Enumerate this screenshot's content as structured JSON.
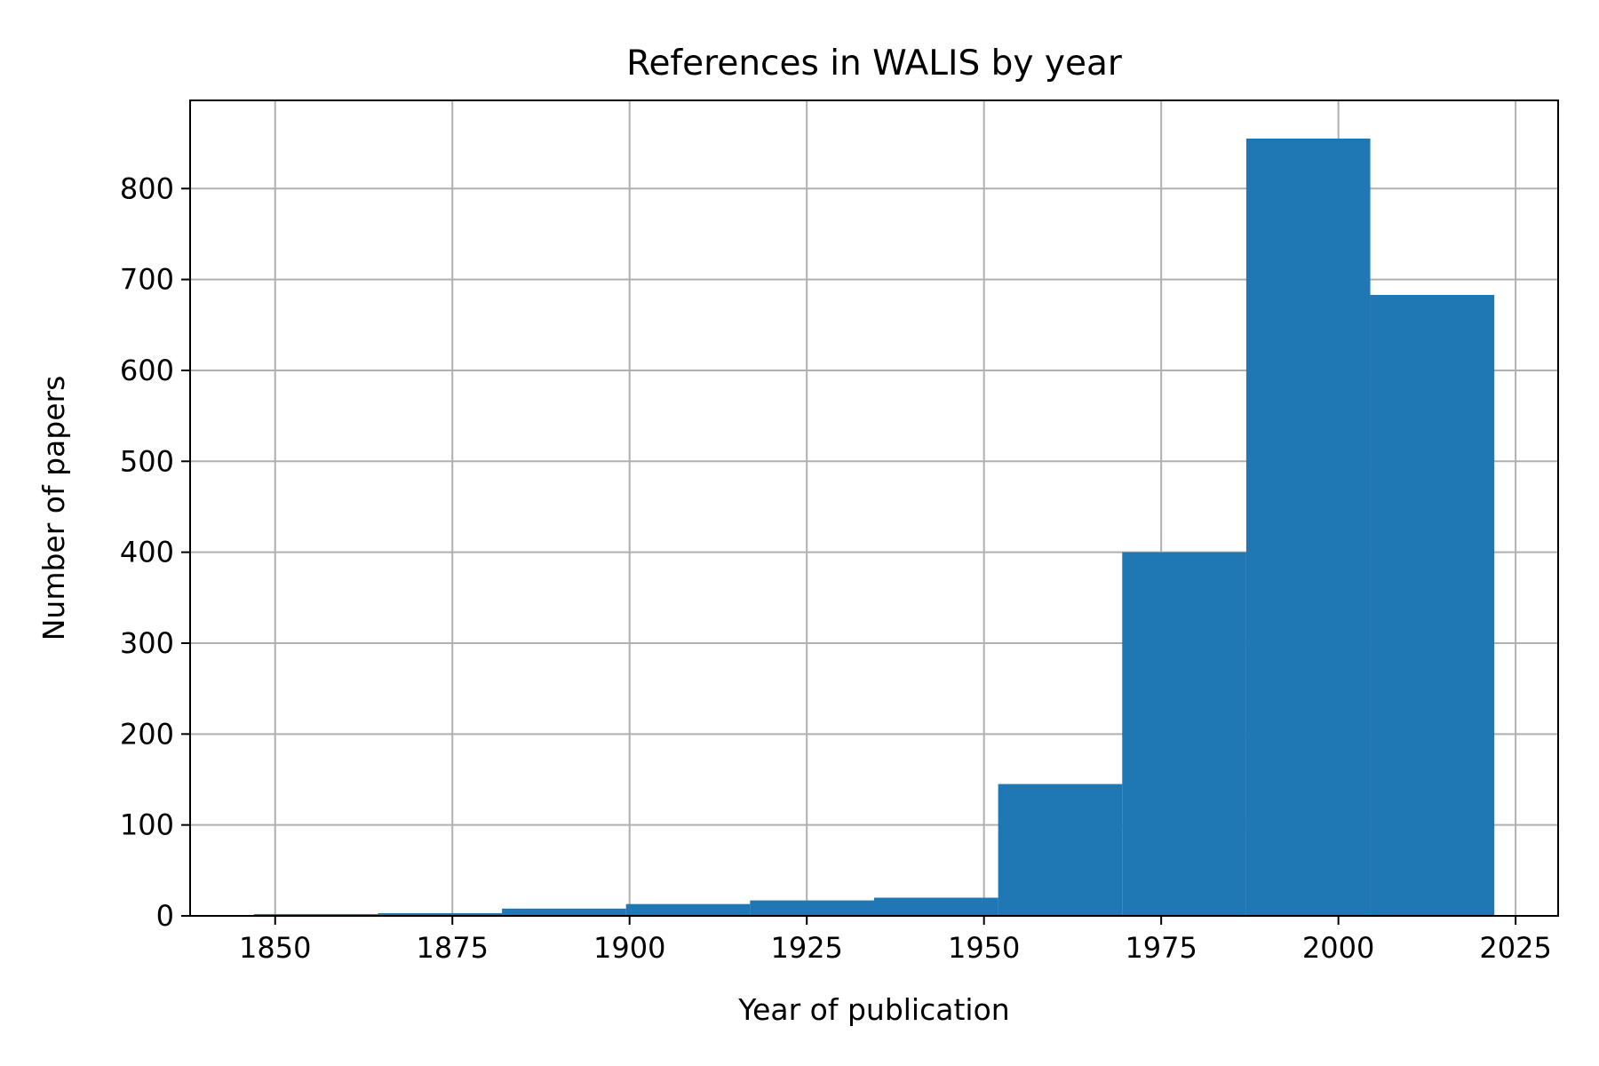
{
  "chart_data": {
    "type": "bar",
    "title": "References in WALIS by year",
    "xlabel": "Year of publication",
    "ylabel": "Number of papers",
    "bin_edges": [
      1847,
      1864.5,
      1882,
      1899.5,
      1917,
      1934.5,
      1952,
      1969.5,
      1987,
      2004.5,
      2022
    ],
    "values": [
      2,
      3,
      8,
      13,
      17,
      20,
      145,
      400,
      855,
      683
    ],
    "xlim": [
      1838,
      2031
    ],
    "ylim": [
      0,
      897
    ],
    "xticks": [
      1850,
      1875,
      1900,
      1925,
      1950,
      1975,
      2000,
      2025
    ],
    "yticks": [
      0,
      100,
      200,
      300,
      400,
      500,
      600,
      700,
      800
    ],
    "grid": true,
    "colors": {
      "bar": "#1f77b4",
      "grid": "#b0b0b0",
      "axes": "#000000"
    }
  }
}
